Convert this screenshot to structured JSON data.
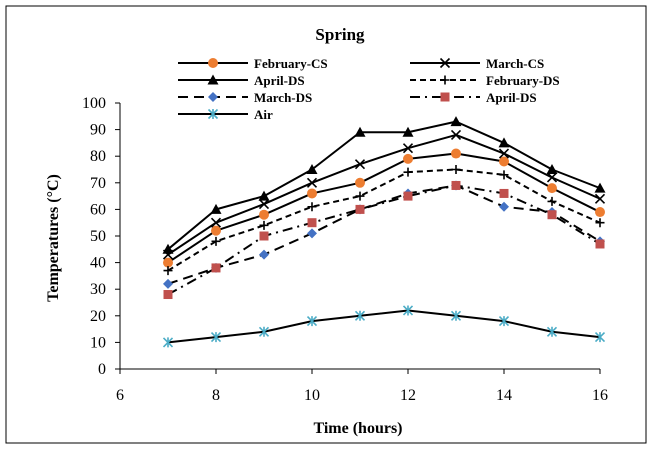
{
  "chart_data": {
    "type": "line",
    "title": "Spring",
    "xlabel": "Time (hours)",
    "ylabel": "Temperatures (°C)",
    "xlim": [
      6,
      16
    ],
    "ylim": [
      0,
      100
    ],
    "x_ticks": [
      "6",
      "8",
      "10",
      "12",
      "14",
      "16"
    ],
    "y_ticks": [
      "0",
      "10",
      "20",
      "30",
      "40",
      "50",
      "60",
      "70",
      "80",
      "90",
      "100"
    ],
    "x": [
      7,
      8,
      9,
      10,
      11,
      12,
      13,
      14,
      15,
      16
    ],
    "grid": false,
    "legend_position": "top",
    "series": [
      {
        "name": "February-CS",
        "color": "#000000",
        "marker": "circle",
        "marker_color": "#ED7D31",
        "dash": "solid",
        "values": [
          40,
          52,
          58,
          66,
          70,
          79,
          81,
          78,
          68,
          59
        ]
      },
      {
        "name": "March-CS",
        "color": "#000000",
        "marker": "x",
        "marker_color": "#000000",
        "dash": "solid",
        "values": [
          43,
          55,
          62,
          70,
          77,
          83,
          88,
          81,
          72,
          64
        ]
      },
      {
        "name": "April-DS",
        "color": "#000000",
        "marker": "triangle",
        "marker_color": "#000000",
        "dash": "solid",
        "values": [
          45,
          60,
          65,
          75,
          89,
          89,
          93,
          85,
          75,
          68
        ]
      },
      {
        "name": "February-DS",
        "color": "#000000",
        "marker": "plus",
        "marker_color": "#000000",
        "dash": "dash",
        "values": [
          37,
          48,
          54,
          61,
          65,
          74,
          75,
          73,
          63,
          55
        ]
      },
      {
        "name": "March-DS",
        "color": "#000000",
        "marker": "diamond",
        "marker_color": "#4472C4",
        "dash": "longdash",
        "values": [
          32,
          38,
          43,
          51,
          60,
          66,
          69,
          61,
          59,
          48
        ]
      },
      {
        "name": "April-DS",
        "color": "#000000",
        "marker": "square",
        "marker_color": "#C0504D",
        "dash": "dashdot",
        "values": [
          28,
          38,
          50,
          55,
          60,
          65,
          69,
          66,
          58,
          47
        ]
      },
      {
        "name": "Air",
        "color": "#000000",
        "marker": "star",
        "marker_color": "#4BACC6",
        "dash": "solid",
        "values": [
          10,
          12,
          14,
          18,
          20,
          22,
          20,
          18,
          14,
          12
        ]
      }
    ]
  }
}
